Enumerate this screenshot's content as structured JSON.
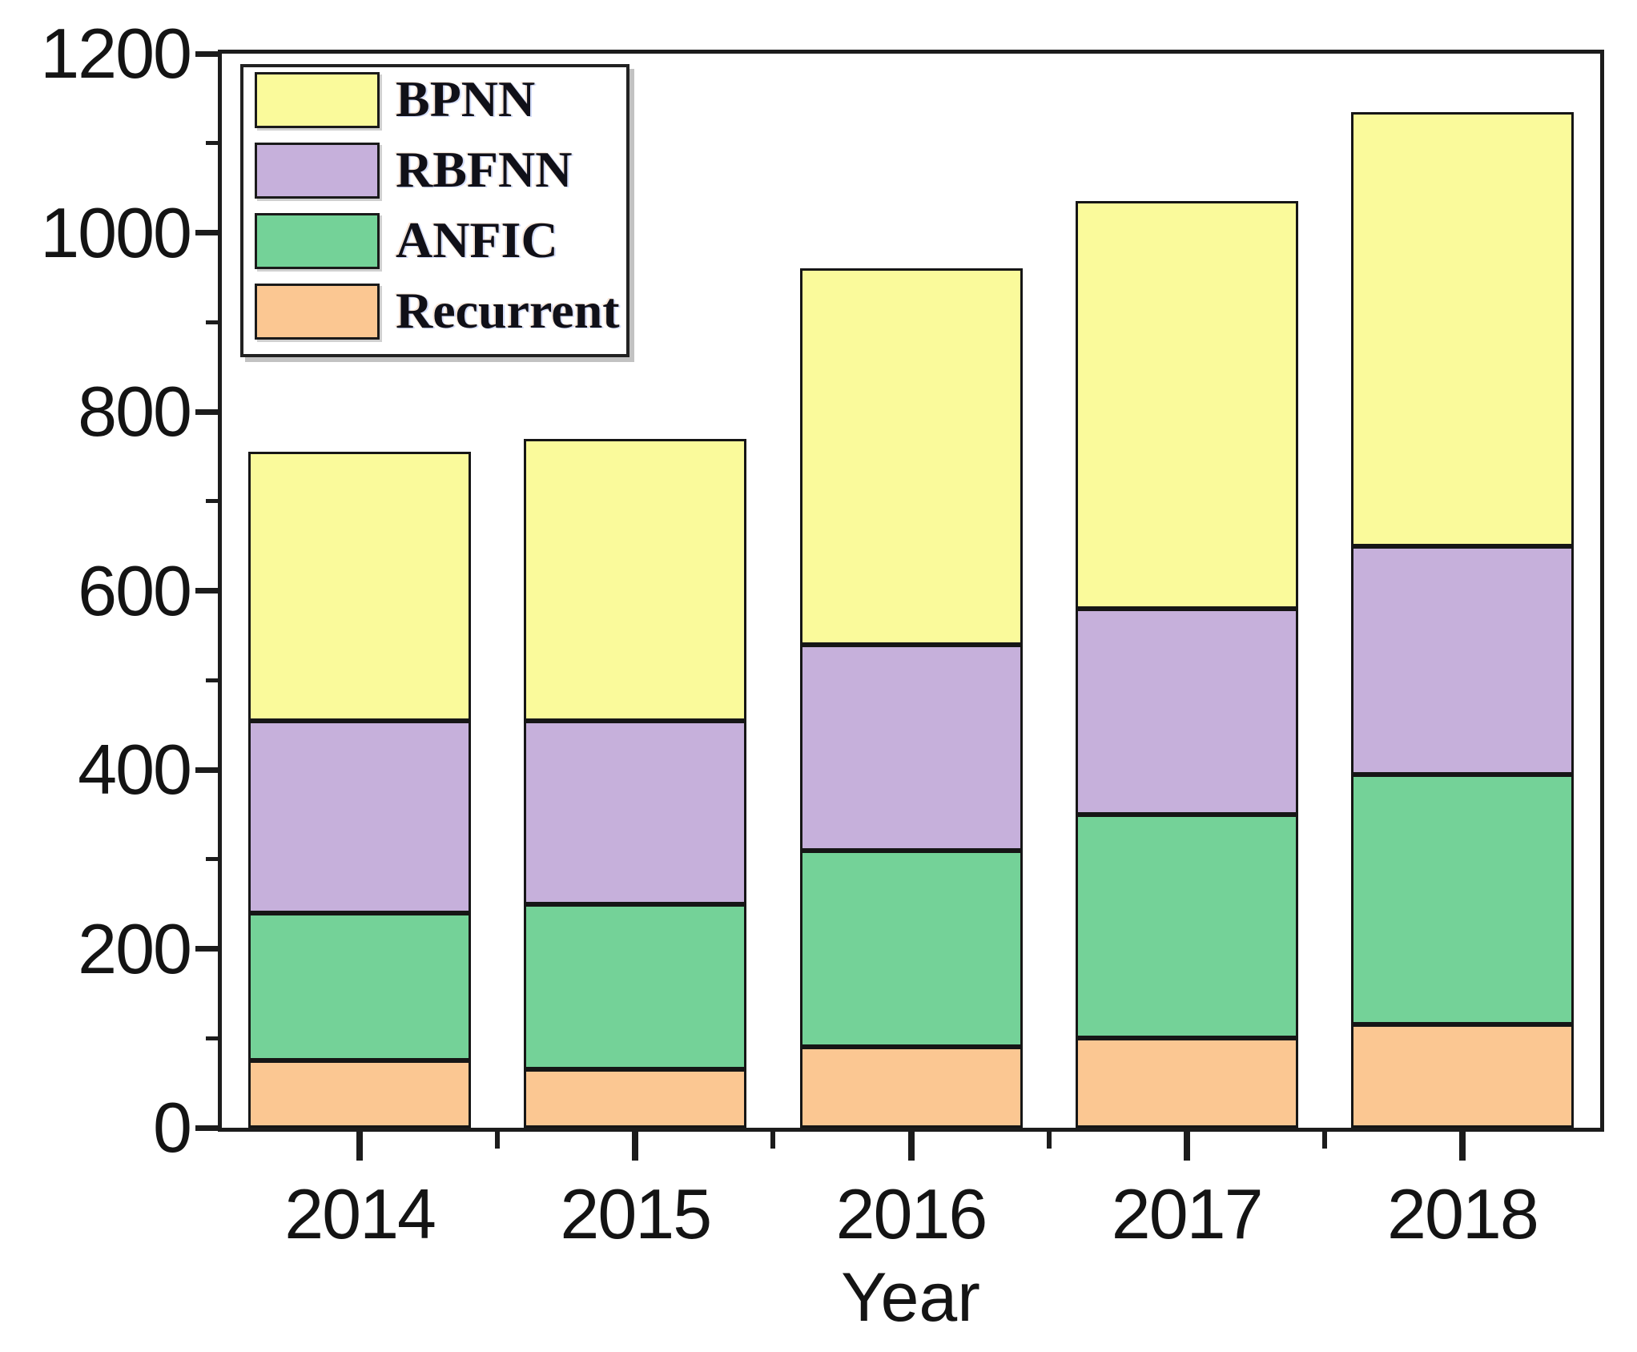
{
  "chart_data": {
    "type": "bar",
    "stacked": true,
    "title": "",
    "xlabel": "Year",
    "ylabel": "",
    "ylim": [
      0,
      1200
    ],
    "y_major_ticks": [
      0,
      200,
      400,
      600,
      800,
      1000,
      1200
    ],
    "y_minor_step": 100,
    "grid": false,
    "legend_position": "top-left",
    "legend_order": [
      "BPNN",
      "RBFNN",
      "ANFIC",
      "Recurrent"
    ],
    "categories": [
      "2014",
      "2015",
      "2016",
      "2017",
      "2018"
    ],
    "series": [
      {
        "name": "Recurrent",
        "color": "#FBC792",
        "values": [
          75,
          65,
          90,
          100,
          115
        ]
      },
      {
        "name": "ANFIC",
        "color": "#74D298",
        "values": [
          165,
          185,
          220,
          250,
          280
        ]
      },
      {
        "name": "RBFNN",
        "color": "#C6B0DB",
        "values": [
          215,
          205,
          230,
          230,
          255
        ]
      },
      {
        "name": "BPNN",
        "color": "#FAFA9B",
        "values": [
          300,
          315,
          420,
          455,
          485
        ]
      }
    ],
    "totals": [
      755,
      770,
      960,
      1035,
      1135
    ]
  },
  "colors": {
    "axis": "#1c1c1c",
    "background": "#ffffff",
    "bar_border": "#161616",
    "text": "#141414"
  }
}
